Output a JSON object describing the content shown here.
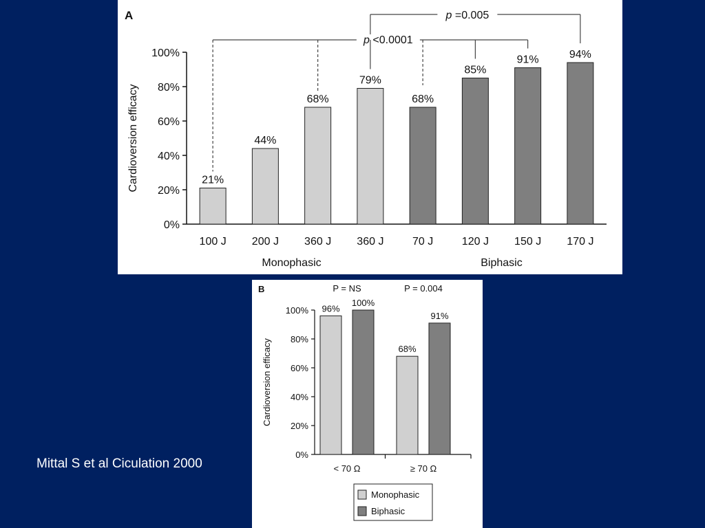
{
  "slide": {
    "background_color": "#002060",
    "caption": "Mittal S et al Ciculation 2000"
  },
  "chart_data": [
    {
      "type": "bar",
      "panel_label": "A",
      "ylabel": "Cardioversion efficacy",
      "ylim": [
        0,
        100
      ],
      "y_ticks": [
        "0%",
        "20%",
        "40%",
        "60%",
        "80%",
        "100%"
      ],
      "categories": [
        "100 J",
        "200 J",
        "360 J",
        "360 J",
        "70 J",
        "120 J",
        "150 J",
        "170 J"
      ],
      "values": [
        21,
        44,
        68,
        79,
        68,
        85,
        91,
        94
      ],
      "value_labels": [
        "21%",
        "44%",
        "68%",
        "79%",
        "68%",
        "85%",
        "91%",
        "94%"
      ],
      "groups": [
        "Monophasic",
        "Monophasic",
        "Monophasic",
        "Monophasic",
        "Biphasic",
        "Biphasic",
        "Biphasic",
        "Biphasic"
      ],
      "group_labels": [
        "Monophasic",
        "Biphasic"
      ],
      "colors": {
        "Monophasic": "#d0d0d0",
        "Biphasic": "#7f7f7f"
      },
      "annotations": [
        {
          "p_prefix": "p",
          "p_value": " <0.0001"
        },
        {
          "p_prefix": "p",
          "p_value": " =0.005"
        }
      ],
      "grid": false
    },
    {
      "type": "bar",
      "panel_label": "B",
      "ylabel": "Cardioversion efficacy",
      "ylim": [
        0,
        100
      ],
      "y_ticks": [
        "0%",
        "20%",
        "40%",
        "60%",
        "80%",
        "100%"
      ],
      "categories": [
        "< 70 Ω",
        "≥ 70 Ω"
      ],
      "series": [
        {
          "name": "Monophasic",
          "values": [
            96,
            68
          ],
          "value_labels": [
            "96%",
            "68%"
          ],
          "color": "#d0d0d0"
        },
        {
          "name": "Biphasic",
          "values": [
            100,
            91
          ],
          "value_labels": [
            "100%",
            "91%"
          ],
          "color": "#7f7f7f"
        }
      ],
      "group_annotations": [
        "P = NS",
        "P = 0.004"
      ],
      "legend_position": "bottom",
      "grid": false
    }
  ]
}
